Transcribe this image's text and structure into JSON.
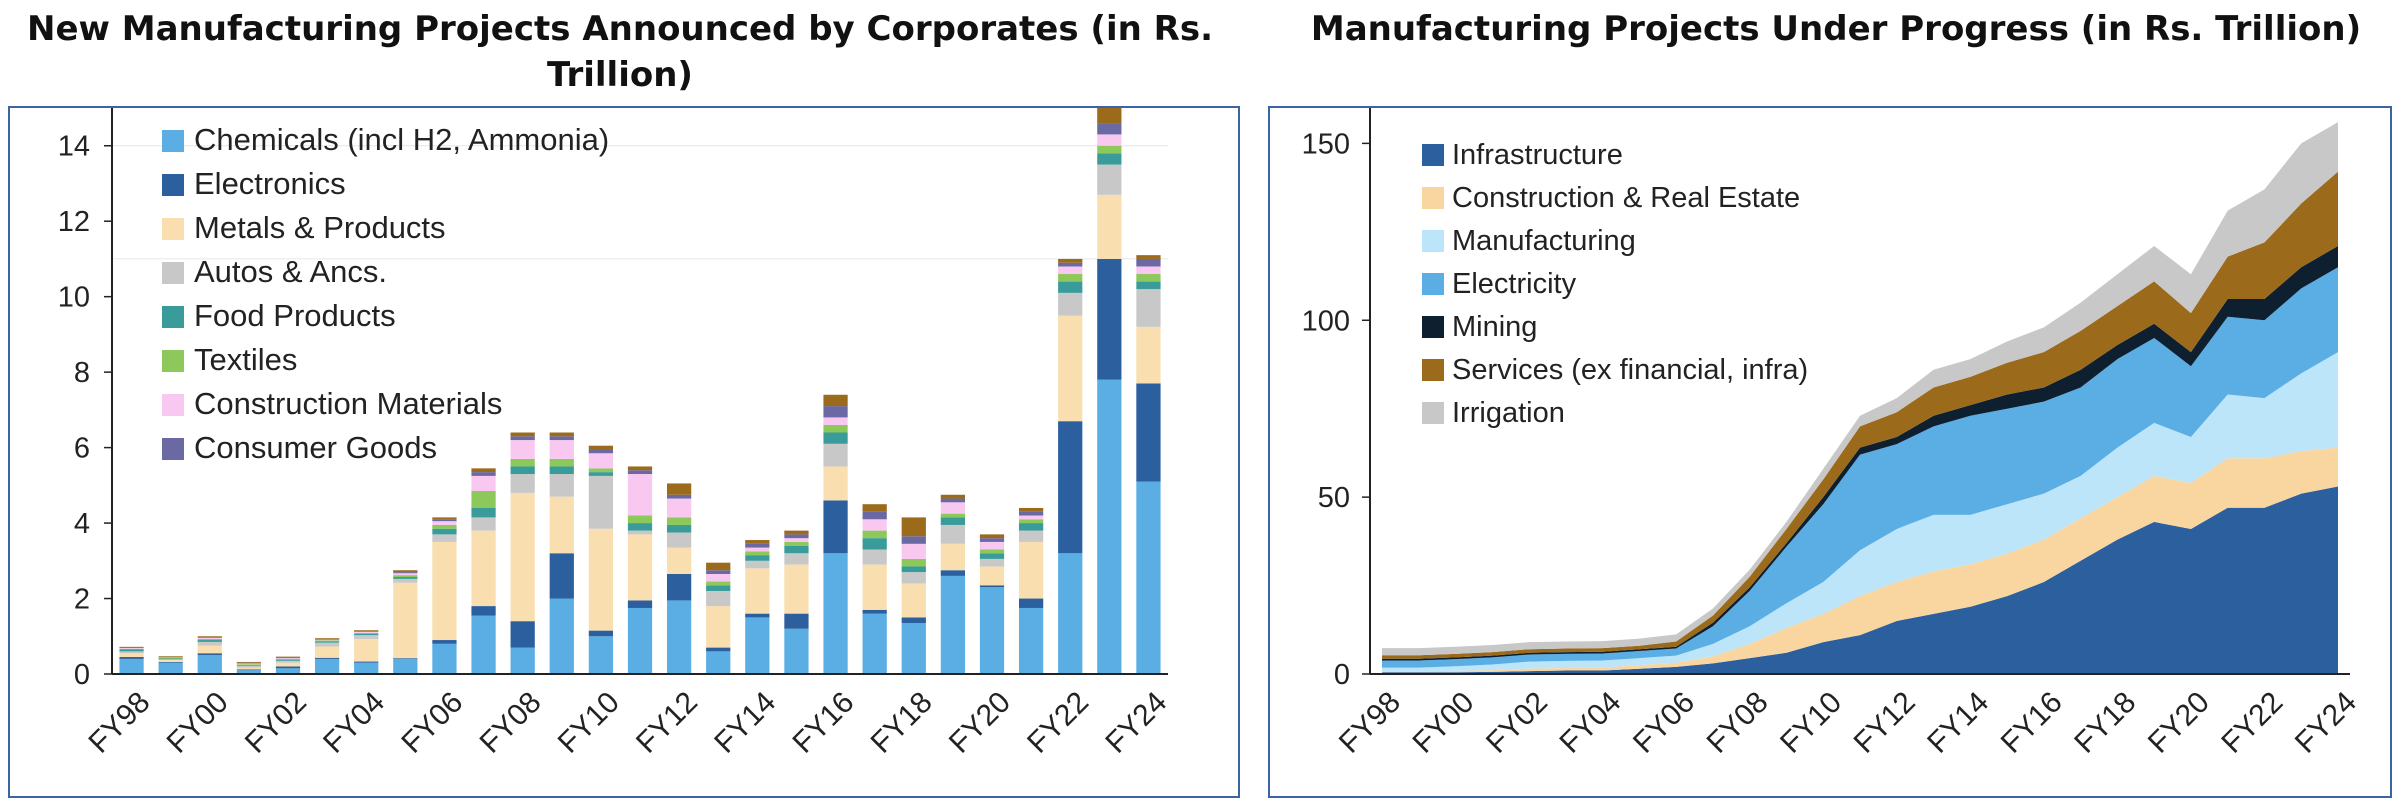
{
  "chart_data": [
    {
      "type": "bar",
      "stacked": true,
      "title": "New Manufacturing Projects Announced by Corporates (in Rs. Trillion)",
      "xlabel": "",
      "ylabel": "",
      "ylim": [
        0,
        15
      ],
      "yticks": [
        0,
        2,
        4,
        6,
        8,
        10,
        12,
        14
      ],
      "grid": false,
      "legend_position": "top-left",
      "categories": [
        "FY98",
        "FY99",
        "FY00",
        "FY01",
        "FY02",
        "FY03",
        "FY04",
        "FY05",
        "FY06",
        "FY07",
        "FY08",
        "FY09",
        "FY10",
        "FY11",
        "FY12",
        "FY13",
        "FY14",
        "FY15",
        "FY16",
        "FY17",
        "FY18",
        "FY19",
        "FY20",
        "FY21",
        "FY22",
        "FY23",
        "FY24"
      ],
      "xtick_labels": [
        "FY98",
        "FY00",
        "FY02",
        "FY04",
        "FY06",
        "FY08",
        "FY10",
        "FY12",
        "FY14",
        "FY16",
        "FY18",
        "FY20",
        "FY22",
        "FY24"
      ],
      "series": [
        {
          "name": "Chemicals (incl H2, Ammonia)",
          "color": "#5aaee3",
          "values": [
            0.4,
            0.3,
            0.5,
            0.1,
            0.15,
            0.4,
            0.3,
            0.4,
            0.8,
            1.55,
            0.7,
            2.0,
            1.0,
            1.75,
            1.95,
            0.6,
            1.5,
            1.2,
            3.2,
            1.6,
            1.35,
            2.6,
            2.3,
            1.75,
            3.2,
            7.8,
            5.1
          ]
        },
        {
          "name": "Electronics",
          "color": "#2b5f9e",
          "values": [
            0.05,
            0.02,
            0.05,
            0.02,
            0.05,
            0.03,
            0.03,
            0.02,
            0.1,
            0.25,
            0.7,
            1.2,
            0.15,
            0.2,
            0.7,
            0.1,
            0.1,
            0.4,
            1.4,
            0.1,
            0.15,
            0.15,
            0.05,
            0.25,
            3.5,
            3.2,
            2.6
          ]
        },
        {
          "name": "Metals & Products",
          "color": "#f9deb0",
          "values": [
            0.1,
            0.05,
            0.2,
            0.05,
            0.1,
            0.3,
            0.6,
            2.0,
            2.6,
            2.0,
            3.4,
            1.5,
            2.7,
            1.75,
            0.7,
            1.1,
            1.2,
            1.3,
            0.9,
            1.2,
            0.9,
            0.7,
            0.5,
            1.5,
            2.8,
            1.7,
            1.5
          ]
        },
        {
          "name": "Autos & Ancs.",
          "color": "#c8c8c8",
          "values": [
            0.05,
            0.02,
            0.1,
            0.05,
            0.05,
            0.1,
            0.1,
            0.1,
            0.2,
            0.35,
            0.5,
            0.6,
            1.4,
            0.1,
            0.4,
            0.4,
            0.2,
            0.3,
            0.6,
            0.4,
            0.3,
            0.5,
            0.2,
            0.3,
            0.6,
            0.8,
            1.0
          ]
        },
        {
          "name": "Food Products",
          "color": "#3a9c9a",
          "values": [
            0.05,
            0.02,
            0.05,
            0.02,
            0.03,
            0.03,
            0.03,
            0.05,
            0.15,
            0.25,
            0.2,
            0.2,
            0.1,
            0.2,
            0.2,
            0.15,
            0.15,
            0.2,
            0.3,
            0.3,
            0.15,
            0.2,
            0.15,
            0.2,
            0.3,
            0.3,
            0.2
          ]
        },
        {
          "name": "Textiles",
          "color": "#8cc85a",
          "values": [
            0.02,
            0.02,
            0.03,
            0.02,
            0.02,
            0.03,
            0.03,
            0.05,
            0.1,
            0.45,
            0.2,
            0.2,
            0.1,
            0.2,
            0.2,
            0.1,
            0.1,
            0.1,
            0.2,
            0.2,
            0.2,
            0.1,
            0.1,
            0.1,
            0.2,
            0.2,
            0.2
          ]
        },
        {
          "name": "Construction Materials",
          "color": "#f8c8f0",
          "values": [
            0.02,
            0.01,
            0.03,
            0.02,
            0.02,
            0.02,
            0.03,
            0.05,
            0.1,
            0.4,
            0.5,
            0.5,
            0.4,
            1.1,
            0.5,
            0.2,
            0.1,
            0.1,
            0.2,
            0.3,
            0.4,
            0.3,
            0.2,
            0.1,
            0.2,
            0.3,
            0.2
          ]
        },
        {
          "name": "Consumer Goods",
          "color": "#6b69a3",
          "values": [
            0.01,
            0.01,
            0.02,
            0.02,
            0.02,
            0.02,
            0.02,
            0.03,
            0.05,
            0.1,
            0.1,
            0.1,
            0.1,
            0.1,
            0.1,
            0.1,
            0.1,
            0.1,
            0.3,
            0.2,
            0.2,
            0.1,
            0.1,
            0.1,
            0.1,
            0.3,
            0.2
          ]
        },
        {
          "name": "",
          "color": "#9b6a1b",
          "values": [
            0.02,
            0.02,
            0.02,
            0.02,
            0.02,
            0.02,
            0.02,
            0.05,
            0.05,
            0.1,
            0.1,
            0.1,
            0.1,
            0.1,
            0.3,
            0.2,
            0.1,
            0.1,
            0.3,
            0.2,
            0.5,
            0.1,
            0.1,
            0.1,
            0.1,
            0.4,
            0.1
          ]
        }
      ]
    },
    {
      "type": "area",
      "stacked": true,
      "title": "Manufacturing Projects Under Progress (in Rs. Trillion)",
      "xlabel": "",
      "ylabel": "",
      "ylim": [
        0,
        160
      ],
      "yticks": [
        0,
        50,
        100,
        150
      ],
      "grid": false,
      "legend_position": "top-left",
      "x": [
        "FY98",
        "FY99",
        "FY00",
        "FY01",
        "FY02",
        "FY03",
        "FY04",
        "FY05",
        "FY06",
        "FY07",
        "FY08",
        "FY09",
        "FY10",
        "FY11",
        "FY12",
        "FY13",
        "FY14",
        "FY15",
        "FY16",
        "FY17",
        "FY18",
        "FY19",
        "FY20",
        "FY21",
        "FY22",
        "FY23",
        "FY24"
      ],
      "xtick_labels": [
        "FY98",
        "FY00",
        "FY02",
        "FY04",
        "FY06",
        "FY08",
        "FY10",
        "FY12",
        "FY14",
        "FY16",
        "FY18",
        "FY20",
        "FY22",
        "FY24"
      ],
      "series": [
        {
          "name": "Infrastructure",
          "color": "#2b5f9e",
          "values": [
            0.5,
            0.5,
            0.5,
            0.6,
            0.8,
            1,
            1,
            1.5,
            2,
            3,
            4.5,
            6,
            9,
            11,
            15,
            17,
            19,
            22,
            26,
            32,
            38,
            43,
            41,
            47,
            47,
            51,
            53
          ]
        },
        {
          "name": "Construction & Real Estate",
          "color": "#f9d6a0",
          "values": [
            0.3,
            0.3,
            0.4,
            0.5,
            0.7,
            0.7,
            0.8,
            1,
            1.2,
            2,
            4,
            7,
            8,
            11,
            11,
            12,
            12,
            12,
            12,
            12,
            12,
            13,
            13,
            14,
            14,
            12,
            11
          ]
        },
        {
          "name": "Manufacturing",
          "color": "#bde5fa",
          "values": [
            1,
            1,
            1.3,
            1.6,
            2,
            2,
            2,
            2,
            2,
            3.5,
            5,
            7,
            9,
            13,
            15,
            16,
            14,
            14,
            13,
            12,
            14,
            15,
            13,
            18,
            17,
            22,
            27
          ]
        },
        {
          "name": "Electricity",
          "color": "#5aaee3",
          "values": [
            2,
            2,
            2,
            2,
            2,
            2,
            2,
            2,
            2,
            5,
            10,
            16,
            22,
            27,
            24,
            25,
            28,
            27,
            26,
            25,
            25,
            24,
            20,
            22,
            22,
            24,
            24
          ]
        },
        {
          "name": "Mining",
          "color": "#0e1f30",
          "values": [
            0.5,
            0.5,
            0.5,
            0.5,
            0.5,
            0.5,
            0.5,
            0.5,
            0.5,
            1,
            1,
            1,
            2,
            2,
            2,
            3,
            3,
            4,
            4,
            5,
            4,
            4,
            4,
            5,
            6,
            6,
            6
          ]
        },
        {
          "name": "Services (ex financial, infra)",
          "color": "#9b6a1b",
          "values": [
            1,
            1,
            1,
            1,
            1,
            1,
            1,
            1,
            1.5,
            2,
            3,
            4,
            5,
            6,
            7,
            8,
            8,
            9,
            10,
            11,
            11,
            12,
            11,
            12,
            16,
            18,
            21
          ]
        },
        {
          "name": "Irrigation",
          "color": "#c8c8c8",
          "values": [
            2,
            2,
            2,
            2,
            2,
            2,
            2,
            2,
            2,
            2,
            2,
            2,
            3,
            3,
            4,
            5,
            5,
            6,
            7,
            8,
            9,
            10,
            11,
            13,
            15,
            17,
            14
          ]
        }
      ]
    }
  ]
}
